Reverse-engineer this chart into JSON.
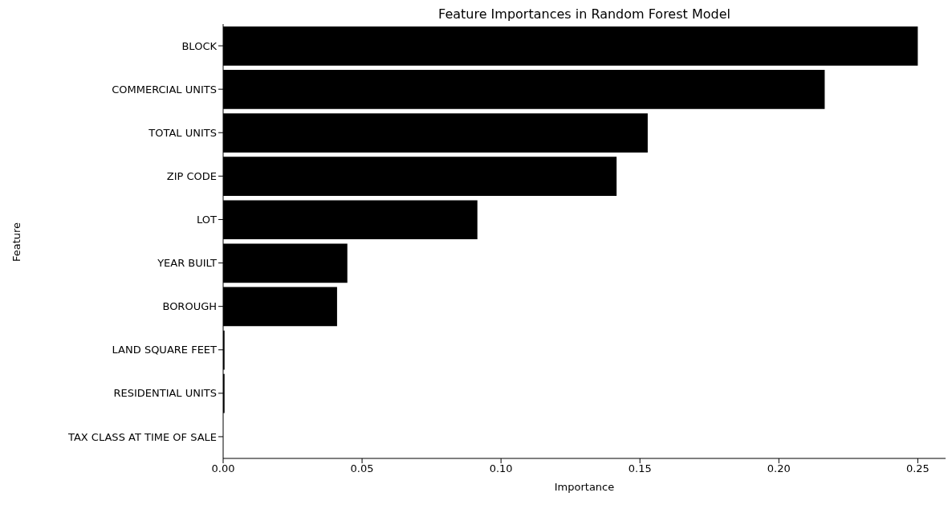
{
  "chart_data": {
    "type": "bar",
    "orientation": "horizontal",
    "title": "Feature Importances in Random Forest Model",
    "xlabel": "Importance",
    "ylabel": "Feature",
    "categories": [
      "BLOCK",
      "COMMERCIAL UNITS",
      "TOTAL UNITS",
      "ZIP CODE",
      "LOT",
      "YEAR BUILT",
      "BOROUGH",
      "LAND SQUARE FEET",
      "RESIDENTIAL UNITS",
      "TAX CLASS AT TIME OF SALE"
    ],
    "values": [
      0.25,
      0.2165,
      0.1528,
      0.1416,
      0.0915,
      0.0447,
      0.041,
      0.0005,
      0.0005,
      0
    ],
    "color": "#000000",
    "xlim": [
      0,
      0.26
    ],
    "xticks": [
      {
        "value": 0,
        "label": "0.00"
      },
      {
        "value": 0.05,
        "label": "0.05"
      },
      {
        "value": 0.1,
        "label": "0.10"
      },
      {
        "value": 0.15,
        "label": "0.15"
      },
      {
        "value": 0.2,
        "label": "0.20"
      },
      {
        "value": 0.25,
        "label": "0.25"
      }
    ],
    "grid": false
  }
}
